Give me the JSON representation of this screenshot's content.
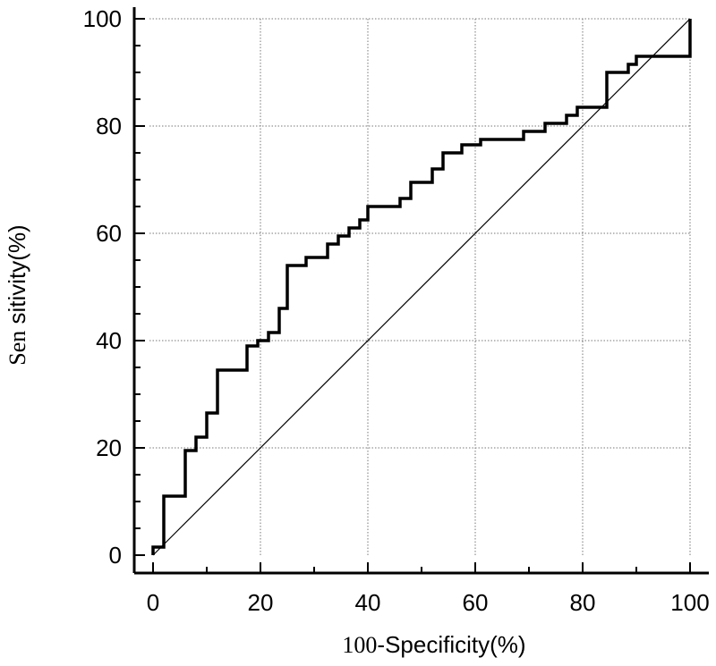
{
  "chart_data": {
    "type": "line",
    "title": "",
    "xlabel": "",
    "xlabel_parts": [
      "100",
      "-Specificity(%)"
    ],
    "ylabel": "",
    "ylabel_parts": [
      "Sen",
      " sitivity(%)"
    ],
    "xlim": [
      0,
      100
    ],
    "ylim": [
      0,
      100
    ],
    "x_ticks": [
      "0",
      "20",
      "40",
      "60",
      "80",
      "100"
    ],
    "y_ticks": [
      "0",
      "20",
      "40",
      "60",
      "80",
      "100"
    ],
    "grid": true,
    "series": [
      {
        "style": "step",
        "color": "#000000",
        "points": [
          [
            0,
            0
          ],
          [
            0,
            1.5
          ],
          [
            2,
            1.5
          ],
          [
            2,
            11
          ],
          [
            6,
            11
          ],
          [
            6,
            19.5
          ],
          [
            8,
            19.5
          ],
          [
            8,
            22
          ],
          [
            10,
            22
          ],
          [
            10,
            26.5
          ],
          [
            12,
            26.5
          ],
          [
            12,
            34.5
          ],
          [
            17.5,
            34.5
          ],
          [
            17.5,
            39
          ],
          [
            19.5,
            39
          ],
          [
            19.5,
            40
          ],
          [
            21.5,
            40
          ],
          [
            21.5,
            41.5
          ],
          [
            23.5,
            41.5
          ],
          [
            23.5,
            46
          ],
          [
            25,
            46
          ],
          [
            25,
            54
          ],
          [
            28.5,
            54
          ],
          [
            28.5,
            55.5
          ],
          [
            32.5,
            55.5
          ],
          [
            32.5,
            58
          ],
          [
            34.5,
            58
          ],
          [
            34.5,
            59.5
          ],
          [
            36.5,
            59.5
          ],
          [
            36.5,
            61
          ],
          [
            38.5,
            61
          ],
          [
            38.5,
            62.5
          ],
          [
            40,
            62.5
          ],
          [
            40,
            65
          ],
          [
            46,
            65
          ],
          [
            46,
            66.5
          ],
          [
            48,
            66.5
          ],
          [
            48,
            69.5
          ],
          [
            52,
            69.5
          ],
          [
            52,
            72
          ],
          [
            54,
            72
          ],
          [
            54,
            75
          ],
          [
            57.5,
            75
          ],
          [
            57.5,
            76.5
          ],
          [
            61,
            76.5
          ],
          [
            61,
            77.5
          ],
          [
            69,
            77.5
          ],
          [
            69,
            79
          ],
          [
            73,
            79
          ],
          [
            73,
            80.5
          ],
          [
            77,
            80.5
          ],
          [
            77,
            82
          ],
          [
            79,
            82
          ],
          [
            79,
            83.5
          ],
          [
            84.5,
            83.5
          ],
          [
            84.5,
            90
          ],
          [
            88.5,
            90
          ],
          [
            88.5,
            91.5
          ],
          [
            90,
            91.5
          ],
          [
            90,
            93
          ],
          [
            100,
            93
          ],
          [
            100,
            100
          ]
        ]
      },
      {
        "style": "diagonal",
        "color": "#000000",
        "points": [
          [
            0,
            0
          ],
          [
            100,
            100
          ]
        ]
      }
    ]
  }
}
